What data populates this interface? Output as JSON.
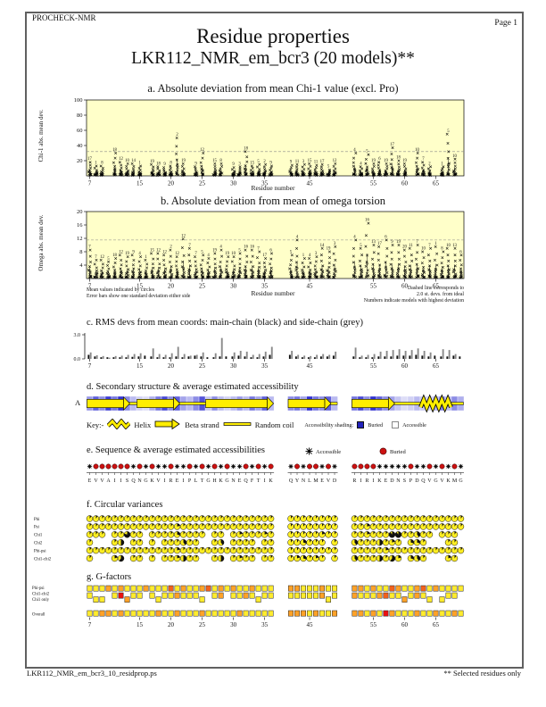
{
  "header": {
    "app": "PROCHECK-NMR",
    "page": "Page  1"
  },
  "title": "Residue properties",
  "subtitle": "LKR112_NMR_em_bcr3 (20 models)**",
  "footer": {
    "left": "LKR112_NMR_em_bcr3_10_residprop.ps",
    "right": "** Selected residues only"
  },
  "notes": {
    "mean1": "Mean values indicated by circles",
    "mean2": "Error bars show one standard deviation either side",
    "xlabel": "Residue number",
    "dash1": "Dashed line corresponds to",
    "dash2": "2.0 st. devs. from ideal",
    "dash3": "Numbers indicate models with highest deviation"
  },
  "chart_data": {
    "type": "multi-panel",
    "residue_groups": [
      {
        "start": 7,
        "letters": "EVVAIISQNGKVIREIPLTGHKGNEQFTIK"
      },
      {
        "start": 42,
        "letters": "QYNLMEVD"
      },
      {
        "start": 52,
        "letters": "RIRIKEDNSPDQVGVKMG"
      }
    ],
    "xticks": [
      7,
      15,
      20,
      25,
      30,
      35,
      45,
      55,
      60,
      65
    ],
    "panel_a": {
      "title": "a. Absolute deviation from mean Chi-1 value (excl. Pro)",
      "ylabel": "Chi-1 abs. mean dev.",
      "xlabel": "Residue number",
      "ylim": [
        0,
        100
      ],
      "yticks": [
        20,
        40,
        60,
        80,
        100
      ],
      "dashed_y": 32,
      "clusters": [
        [
          18,
          "17"
        ],
        [
          13,
          "1"
        ],
        [
          13,
          "8"
        ],
        null,
        [
          30,
          "18"
        ],
        [
          18,
          "12"
        ],
        [
          16,
          "10"
        ],
        [
          16,
          "14"
        ],
        [
          13,
          "1"
        ],
        null,
        [
          15,
          "19"
        ],
        [
          12,
          "18"
        ],
        [
          11,
          "9"
        ],
        [
          13,
          "8"
        ],
        [
          50,
          "2"
        ],
        [
          16,
          "19"
        ],
        null,
        [
          12,
          "9"
        ],
        [
          30,
          "12"
        ],
        null,
        [
          16,
          "15"
        ],
        [
          16,
          "8"
        ],
        null,
        [
          11,
          "9"
        ],
        [
          12,
          "3"
        ],
        [
          32,
          "18"
        ],
        [
          13,
          "15"
        ],
        [
          15,
          "5"
        ],
        [
          15,
          "2"
        ],
        [
          13,
          "9"
        ],
        [
          14,
          "9"
        ],
        [
          15,
          "11"
        ],
        [
          15,
          "3"
        ],
        [
          16,
          "15"
        ],
        [
          14,
          "11"
        ],
        [
          15,
          "17"
        ],
        [
          8,
          "5"
        ],
        [
          16,
          "12"
        ],
        [
          30,
          "4"
        ],
        [
          12,
          "4"
        ],
        [
          28,
          "5"
        ],
        [
          16,
          "19"
        ],
        [
          18,
          "6"
        ],
        [
          16,
          "19"
        ],
        [
          37,
          "17"
        ],
        [
          20,
          "18"
        ],
        [
          16,
          "19"
        ],
        null,
        [
          30,
          "10"
        ],
        [
          18,
          "7"
        ],
        [
          12,
          "2"
        ],
        null,
        [
          12,
          "1"
        ],
        [
          55,
          "5"
        ],
        [
          22,
          "10"
        ],
        null
      ]
    },
    "panel_b": {
      "title": "b. Absolute deviation from mean of omega torsion",
      "ylabel": "Omega abs. mean dev.",
      "ylim": [
        0,
        20
      ],
      "yticks": [
        4,
        8,
        12,
        16,
        20
      ],
      "dashed_y": 11.5,
      "clusters": [
        [
          8.5,
          "7"
        ],
        [
          5.5,
          "7"
        ],
        [
          5.5,
          "12"
        ],
        [
          5,
          "5"
        ],
        [
          6,
          "18"
        ],
        [
          7,
          "12"
        ],
        [
          6.5,
          "19"
        ],
        [
          7,
          "9"
        ],
        [
          6.5,
          "4"
        ],
        [
          5.5,
          "1"
        ],
        [
          7.5,
          "15"
        ],
        [
          7.5,
          "12"
        ],
        [
          7,
          "12"
        ],
        [
          8.5,
          "2"
        ],
        [
          6.5,
          "12"
        ],
        [
          11.8,
          "12"
        ],
        [
          9,
          "7"
        ],
        [
          6.5,
          "7"
        ],
        [
          7,
          "5"
        ],
        [
          6,
          "4"
        ],
        [
          7.5,
          "19"
        ],
        [
          8.5,
          "4"
        ],
        [
          6.5,
          "19"
        ],
        [
          6.5,
          "10"
        ],
        [
          7.5,
          "5"
        ],
        [
          8.5,
          "16"
        ],
        [
          8.5,
          "16"
        ],
        [
          8,
          "7"
        ],
        [
          6,
          "17"
        ],
        [
          7.5,
          "6"
        ],
        [
          7,
          "5"
        ],
        [
          11.5,
          "4"
        ],
        [
          6,
          "1"
        ],
        [
          6,
          "4"
        ],
        [
          6.5,
          "3"
        ],
        [
          9,
          "14"
        ],
        [
          8,
          "19"
        ],
        [
          9.5,
          "3"
        ],
        [
          11.5,
          "4"
        ],
        [
          9,
          "5"
        ],
        [
          16.5,
          "16"
        ],
        [
          10,
          "13"
        ],
        [
          9.5,
          "17"
        ],
        [
          11.5,
          "6"
        ],
        [
          10,
          "9"
        ],
        [
          10,
          "19"
        ],
        [
          8.5,
          "20"
        ],
        [
          9,
          "11"
        ],
        [
          10,
          "7"
        ],
        [
          8,
          "10"
        ],
        [
          9,
          "7"
        ],
        [
          9.5,
          "1"
        ],
        [
          8,
          "8"
        ],
        [
          9,
          "10"
        ],
        [
          9,
          "13"
        ],
        [
          7,
          "6"
        ]
      ]
    },
    "panel_c": {
      "title": "c. RMS devs from mean coords: main-chain (black) and side-chain (grey)",
      "ylim": [
        0,
        3
      ],
      "ytick_labels": [
        "0.0",
        "3.0"
      ],
      "main": [
        0.5,
        0.3,
        0.2,
        0.2,
        0.2,
        0.2,
        0.2,
        0.25,
        0.3,
        0.4,
        0.3,
        0.2,
        0.2,
        0.2,
        0.3,
        0.2,
        0.3,
        0.4,
        0.3,
        0.2,
        0.2,
        0.3,
        0.3,
        0.3,
        0.4,
        0.3,
        0.2,
        0.2,
        0.3,
        0.5,
        0.5,
        0.3,
        0.2,
        0.2,
        0.2,
        0.3,
        0.3,
        0.4,
        0.3,
        0.2,
        0.2,
        0.2,
        0.3,
        0.3,
        0.3,
        0.4,
        0.4,
        0.4,
        0.5,
        0.4,
        0.3,
        0.4,
        0.3,
        0.3,
        0.4,
        0.3
      ],
      "side": [
        0.8,
        0.45,
        0.35,
        0.15,
        0.35,
        0.4,
        0.5,
        0.6,
        0.7,
        0,
        1.3,
        0.6,
        0.5,
        0.7,
        1.5,
        0.6,
        0.4,
        0.5,
        0.8,
        0,
        0.7,
        2.6,
        0,
        0.8,
        1.0,
        0.9,
        0.5,
        0.6,
        0.9,
        1.5,
        1.0,
        0.5,
        0.4,
        0.35,
        0.5,
        0.6,
        0.5,
        0.9,
        1.4,
        0.4,
        0.5,
        0.6,
        0.9,
        1.0,
        1.1,
        1.2,
        1.0,
        1.1,
        1.3,
        1.0,
        0.8,
        0,
        1.2,
        1.1,
        0.6,
        0
      ]
    },
    "panel_d": {
      "title": "d. Secondary structure & average estimated accessibility",
      "model_label": "A",
      "key": {
        "key": "Key:-",
        "helix": "Helix",
        "strand": "Beta strand",
        "coil": "Random coil",
        "shading": "Accessibility shading:",
        "buried": "Buried",
        "accessible": "Accessible"
      },
      "access": [
        0.45,
        0.7,
        0.5,
        0.85,
        0.6,
        0.9,
        0.5,
        0.3,
        0.2,
        0.15,
        0.35,
        0.6,
        0.8,
        0.5,
        0.7,
        0.4,
        0.3,
        0.5,
        0.75,
        0.25,
        0.5,
        0.3,
        0.2,
        0.3,
        0.45,
        0.3,
        0.6,
        0.4,
        0.7,
        0.3,
        0.5,
        0.6,
        0.4,
        0.9,
        0.6,
        0.5,
        0.7,
        0.3,
        0.6,
        0.8,
        0.5,
        0.9,
        0.7,
        0.5,
        0.4,
        0.25,
        0.15,
        0.2,
        0.3,
        0.25,
        0.2,
        0.35,
        0.55,
        0.3,
        0.5,
        0.35
      ],
      "segments": [
        {
          "type": "strand",
          "from": 7,
          "to": 13
        },
        {
          "type": "coil",
          "from": 13,
          "to": 15
        },
        {
          "type": "strand",
          "from": 15,
          "to": 21
        },
        {
          "type": "coil",
          "from": 21,
          "to": 26
        },
        {
          "type": "strand",
          "from": 26,
          "to": 36
        },
        {
          "type": "strand",
          "from": 42,
          "to": 48
        },
        {
          "type": "coil",
          "from": 48,
          "to": 49
        },
        {
          "type": "strand",
          "from": 52,
          "to": 58
        },
        {
          "type": "coil",
          "from": 58,
          "to": 63
        },
        {
          "type": "helix",
          "from": 63,
          "to": 67
        },
        {
          "type": "coil",
          "from": 67,
          "to": 69
        }
      ]
    },
    "panel_e": {
      "title": "e. Sequence & average estimated accessibilities",
      "legend_accessible": "Accessible",
      "legend_buried": "Buried",
      "marks": "abbbbbbababaabaababababaabababababbababbbbaaaaabaabababa"
    },
    "panel_f": {
      "title": "f. Circular variances",
      "rows": [
        {
          "label": "Phi",
          "vals": "11111111111111111111111111111111111111111111111111111111"
        },
        {
          "label": "Psi",
          "vals": "11111111111111211111111111111111111111112111111111111111"
        },
        {
          "label": "Chi1",
          "vals": "111-11811-111131111-11-1211121111112111121119911411-111-"
        },
        {
          "label": "Chi2",
          "vals": "1---15-11-1-111411--14-1111-11113111-141115121-331---11-"
        },
        {
          "label": "Phi-psi",
          "vals": "11111111111111211111111111111111111111111112111111111111"
        },
        {
          "label": "Chi1-chi2",
          "vals": "1---26-11-1-112511--15-1211-11123121-141115162-341---21-"
        }
      ]
    },
    "panel_g": {
      "title": "g. G-factors",
      "row_labels": [
        "Phi-psi",
        "Chi1-chi2",
        "Chi1 only",
        "Overall"
      ],
      "phi_psi": "yyyoyoyyyoyyydyoyyodyoyoyyoyyyooyyyoyyooyoyydoyyodyoyyyy",
      "chi": "yYY-yrOyy-yYyyoyyyY-yo-yyoyYyyyyyyyoYyoyyyodyyOyoyY-Yyy-",
      "overall": "yyooyoyyyyyoyyoyyyoyyyyyoyyyyyoooyoyyoooyoyroyyyoyyoyyoy"
    }
  }
}
